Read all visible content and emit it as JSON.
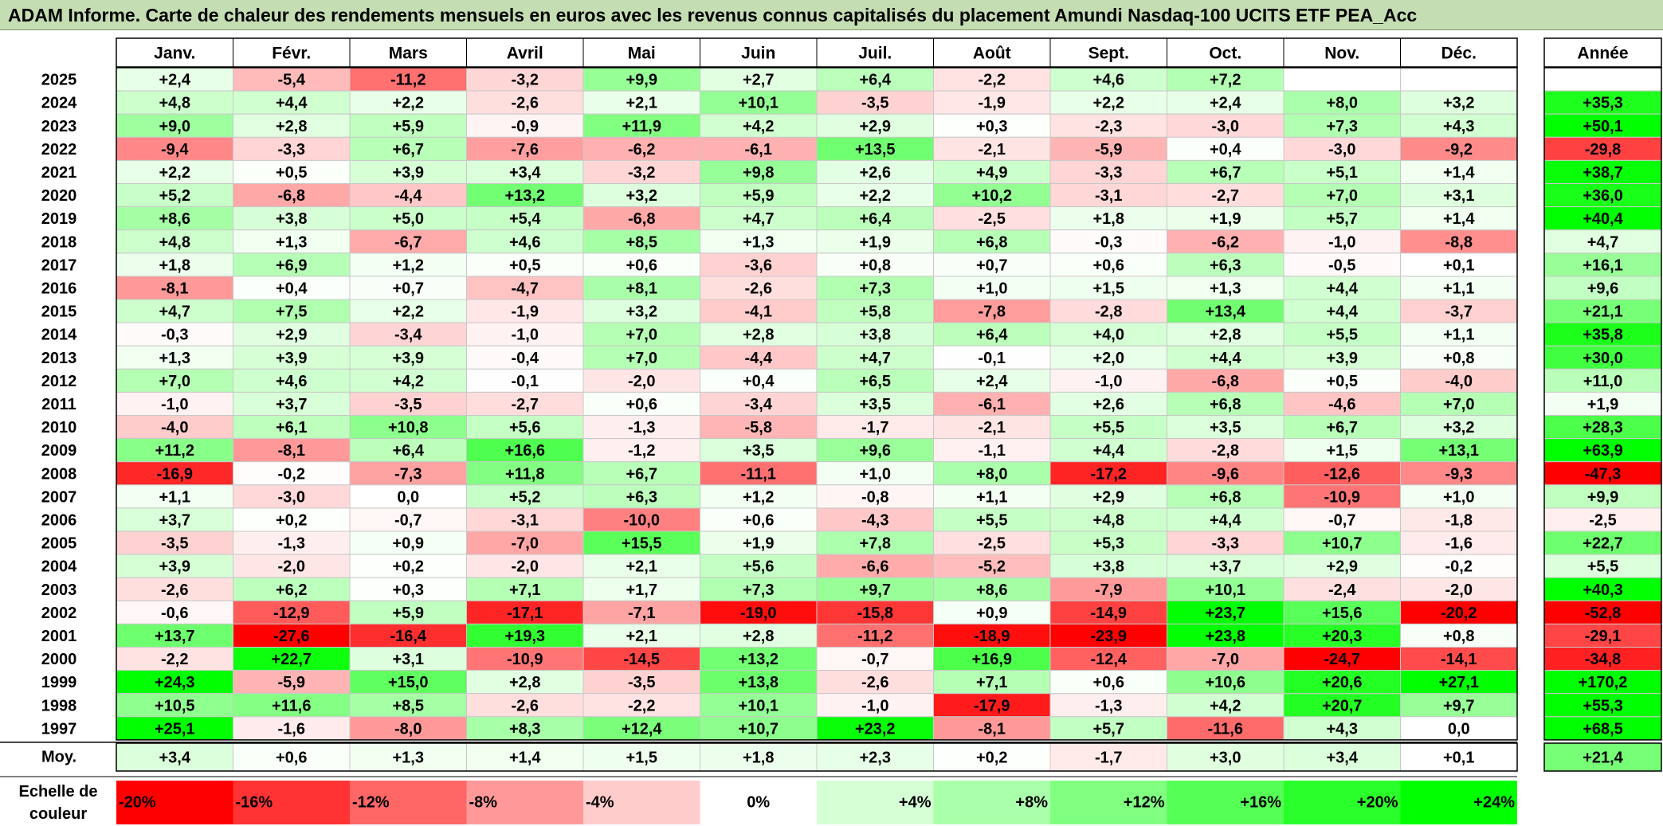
{
  "title": "ADAM Informe. Carte de chaleur des rendements mensuels en euros avec les revenus connus capitalisés du placement Amundi Nasdaq-100 UCITS ETF PEA_Acc",
  "chart_data": {
    "type": "heatmap",
    "months": [
      "Janv.",
      "Févr.",
      "Mars",
      "Avril",
      "Mai",
      "Juin",
      "Juil.",
      "Août",
      "Sept.",
      "Oct.",
      "Nov.",
      "Déc."
    ],
    "year_header": "Année",
    "rows": [
      {
        "label": "2025",
        "values": [
          "+2,4",
          "-5,4",
          "-11,2",
          "-3,2",
          "+9,9",
          "+2,7",
          "+6,4",
          "-2,2",
          "+4,6",
          "+7,2",
          "",
          ""
        ],
        "year": ""
      },
      {
        "label": "2024",
        "values": [
          "+4,8",
          "+4,4",
          "+2,2",
          "-2,6",
          "+2,1",
          "+10,1",
          "-3,5",
          "-1,9",
          "+2,2",
          "+2,4",
          "+8,0",
          "+3,2"
        ],
        "year": "+35,3"
      },
      {
        "label": "2023",
        "values": [
          "+9,0",
          "+2,8",
          "+5,9",
          "-0,9",
          "+11,9",
          "+4,2",
          "+2,9",
          "+0,3",
          "-2,3",
          "-3,0",
          "+7,3",
          "+4,3"
        ],
        "year": "+50,1"
      },
      {
        "label": "2022",
        "values": [
          "-9,4",
          "-3,3",
          "+6,7",
          "-7,6",
          "-6,2",
          "-6,1",
          "+13,5",
          "-2,1",
          "-5,9",
          "+0,4",
          "-3,0",
          "-9,2"
        ],
        "year": "-29,8"
      },
      {
        "label": "2021",
        "values": [
          "+2,2",
          "+0,5",
          "+3,9",
          "+3,4",
          "-3,2",
          "+9,8",
          "+2,6",
          "+4,9",
          "-3,3",
          "+6,7",
          "+5,1",
          "+1,4"
        ],
        "year": "+38,7"
      },
      {
        "label": "2020",
        "values": [
          "+5,2",
          "-6,8",
          "-4,4",
          "+13,2",
          "+3,2",
          "+5,9",
          "+2,2",
          "+10,2",
          "-3,1",
          "-2,7",
          "+7,0",
          "+3,1"
        ],
        "year": "+36,0"
      },
      {
        "label": "2019",
        "values": [
          "+8,6",
          "+3,8",
          "+5,0",
          "+5,4",
          "-6,8",
          "+4,7",
          "+6,4",
          "-2,5",
          "+1,8",
          "+1,9",
          "+5,7",
          "+1,4"
        ],
        "year": "+40,4"
      },
      {
        "label": "2018",
        "values": [
          "+4,8",
          "+1,3",
          "-6,7",
          "+4,6",
          "+8,5",
          "+1,3",
          "+1,9",
          "+6,8",
          "-0,3",
          "-6,2",
          "-1,0",
          "-8,8"
        ],
        "year": "+4,7"
      },
      {
        "label": "2017",
        "values": [
          "+1,8",
          "+6,9",
          "+1,2",
          "+0,5",
          "+0,6",
          "-3,6",
          "+0,8",
          "+0,7",
          "+0,6",
          "+6,3",
          "-0,5",
          "+0,1"
        ],
        "year": "+16,1"
      },
      {
        "label": "2016",
        "values": [
          "-8,1",
          "+0,4",
          "+0,7",
          "-4,7",
          "+8,1",
          "-2,6",
          "+7,3",
          "+1,0",
          "+1,5",
          "+1,3",
          "+4,4",
          "+1,1"
        ],
        "year": "+9,6"
      },
      {
        "label": "2015",
        "values": [
          "+4,7",
          "+7,5",
          "+2,2",
          "-1,9",
          "+3,2",
          "-4,1",
          "+5,8",
          "-7,8",
          "-2,8",
          "+13,4",
          "+4,4",
          "-3,7"
        ],
        "year": "+21,1"
      },
      {
        "label": "2014",
        "values": [
          "-0,3",
          "+2,9",
          "-3,4",
          "-1,0",
          "+7,0",
          "+2,8",
          "+3,8",
          "+6,4",
          "+4,0",
          "+2,8",
          "+5,5",
          "+1,1"
        ],
        "year": "+35,8"
      },
      {
        "label": "2013",
        "values": [
          "+1,3",
          "+3,9",
          "+3,9",
          "-0,4",
          "+7,0",
          "-4,4",
          "+4,7",
          "-0,1",
          "+2,0",
          "+4,4",
          "+3,9",
          "+0,8"
        ],
        "year": "+30,0"
      },
      {
        "label": "2012",
        "values": [
          "+7,0",
          "+4,6",
          "+4,2",
          "-0,1",
          "-2,0",
          "+0,4",
          "+6,5",
          "+2,4",
          "-1,0",
          "-6,8",
          "+0,5",
          "-4,0"
        ],
        "year": "+11,0"
      },
      {
        "label": "2011",
        "values": [
          "-1,0",
          "+3,7",
          "-3,5",
          "-2,7",
          "+0,6",
          "-3,4",
          "+3,5",
          "-6,1",
          "+2,6",
          "+6,8",
          "-4,6",
          "+7,0"
        ],
        "year": "+1,9"
      },
      {
        "label": "2010",
        "values": [
          "-4,0",
          "+6,1",
          "+10,8",
          "+5,6",
          "-1,3",
          "-5,8",
          "-1,7",
          "-2,1",
          "+5,5",
          "+3,5",
          "+6,7",
          "+3,2"
        ],
        "year": "+28,3"
      },
      {
        "label": "2009",
        "values": [
          "+11,2",
          "-8,1",
          "+6,4",
          "+16,6",
          "-1,2",
          "+3,5",
          "+9,6",
          "-1,1",
          "+4,4",
          "-2,8",
          "+1,5",
          "+13,1"
        ],
        "year": "+63,9"
      },
      {
        "label": "2008",
        "values": [
          "-16,9",
          "-0,2",
          "-7,3",
          "+11,8",
          "+6,7",
          "-11,1",
          "+1,0",
          "+8,0",
          "-17,2",
          "-9,6",
          "-12,6",
          "-9,3"
        ],
        "year": "-47,3"
      },
      {
        "label": "2007",
        "values": [
          "+1,1",
          "-3,0",
          "0,0",
          "+5,2",
          "+6,3",
          "+1,2",
          "-0,8",
          "+1,1",
          "+2,9",
          "+6,8",
          "-10,9",
          "+1,0"
        ],
        "year": "+9,9"
      },
      {
        "label": "2006",
        "values": [
          "+3,7",
          "+0,2",
          "-0,7",
          "-3,1",
          "-10,0",
          "+0,6",
          "-4,3",
          "+5,5",
          "+4,8",
          "+4,4",
          "-0,7",
          "-1,8"
        ],
        "year": "-2,5"
      },
      {
        "label": "2005",
        "values": [
          "-3,5",
          "-1,3",
          "+0,9",
          "-7,0",
          "+15,5",
          "+1,9",
          "+7,8",
          "-2,5",
          "+5,3",
          "-3,3",
          "+10,7",
          "-1,6"
        ],
        "year": "+22,7"
      },
      {
        "label": "2004",
        "values": [
          "+3,9",
          "-2,0",
          "+0,2",
          "-2,0",
          "+2,1",
          "+5,6",
          "-6,6",
          "-5,2",
          "+3,8",
          "+3,7",
          "+2,9",
          "-0,2"
        ],
        "year": "+5,5"
      },
      {
        "label": "2003",
        "values": [
          "-2,6",
          "+6,2",
          "+0,3",
          "+7,1",
          "+1,7",
          "+7,3",
          "+9,7",
          "+8,6",
          "-7,9",
          "+10,1",
          "-2,4",
          "-2,0"
        ],
        "year": "+40,3"
      },
      {
        "label": "2002",
        "values": [
          "-0,6",
          "-12,9",
          "+5,9",
          "-17,1",
          "-7,1",
          "-19,0",
          "-15,8",
          "+0,9",
          "-14,9",
          "+23,7",
          "+15,6",
          "-20,2"
        ],
        "year": "-52,8"
      },
      {
        "label": "2001",
        "values": [
          "+13,7",
          "-27,6",
          "-16,4",
          "+19,3",
          "+2,1",
          "+2,8",
          "-11,2",
          "-18,9",
          "-23,9",
          "+23,8",
          "+20,3",
          "+0,8"
        ],
        "year": "-29,1"
      },
      {
        "label": "2000",
        "values": [
          "-2,2",
          "+22,7",
          "+3,1",
          "-10,9",
          "-14,5",
          "+13,2",
          "-0,7",
          "+16,9",
          "-12,4",
          "-7,0",
          "-24,7",
          "-14,1"
        ],
        "year": "-34,8"
      },
      {
        "label": "1999",
        "values": [
          "+24,3",
          "-5,9",
          "+15,0",
          "+2,8",
          "-3,5",
          "+13,8",
          "-2,6",
          "+7,1",
          "+0,6",
          "+10,6",
          "+20,6",
          "+27,1"
        ],
        "year": "+170,2"
      },
      {
        "label": "1998",
        "values": [
          "+10,5",
          "+11,6",
          "+8,5",
          "-2,6",
          "-2,2",
          "+10,1",
          "-1,0",
          "-17,9",
          "-1,3",
          "+4,2",
          "+20,7",
          "+9,7"
        ],
        "year": "+55,3"
      },
      {
        "label": "1997",
        "values": [
          "+25,1",
          "-1,6",
          "-8,0",
          "+8,3",
          "+12,4",
          "+10,7",
          "+23,2",
          "-8,1",
          "+5,7",
          "-11,6",
          "+4,3",
          "0,0"
        ],
        "year": "+68,5"
      }
    ],
    "average": {
      "label": "Moy.",
      "values": [
        "+3,4",
        "+0,6",
        "+1,3",
        "+1,4",
        "+1,5",
        "+1,8",
        "+2,3",
        "+0,2",
        "-1,7",
        "+3,0",
        "+3,4",
        "+0,1"
      ],
      "year": "+21,4"
    },
    "scale": {
      "label_line1": "Echelle de",
      "label_line2": "couleur",
      "stops": [
        {
          "label": "-20%",
          "value": -20
        },
        {
          "label": "-16%",
          "value": -16
        },
        {
          "label": "-12%",
          "value": -12
        },
        {
          "label": "-8%",
          "value": -8
        },
        {
          "label": "-4%",
          "value": -4
        },
        {
          "label": "0%",
          "value": 0
        },
        {
          "label": "+4%",
          "value": 4
        },
        {
          "label": "+8%",
          "value": 8
        },
        {
          "label": "+12%",
          "value": 12
        },
        {
          "label": "+16%",
          "value": 16
        },
        {
          "label": "+20%",
          "value": 20
        },
        {
          "label": "+24%",
          "value": 24
        }
      ]
    },
    "colors": {
      "negative": "#ff0000",
      "neutral": "#ffffff",
      "positive": "#00ff00"
    }
  }
}
